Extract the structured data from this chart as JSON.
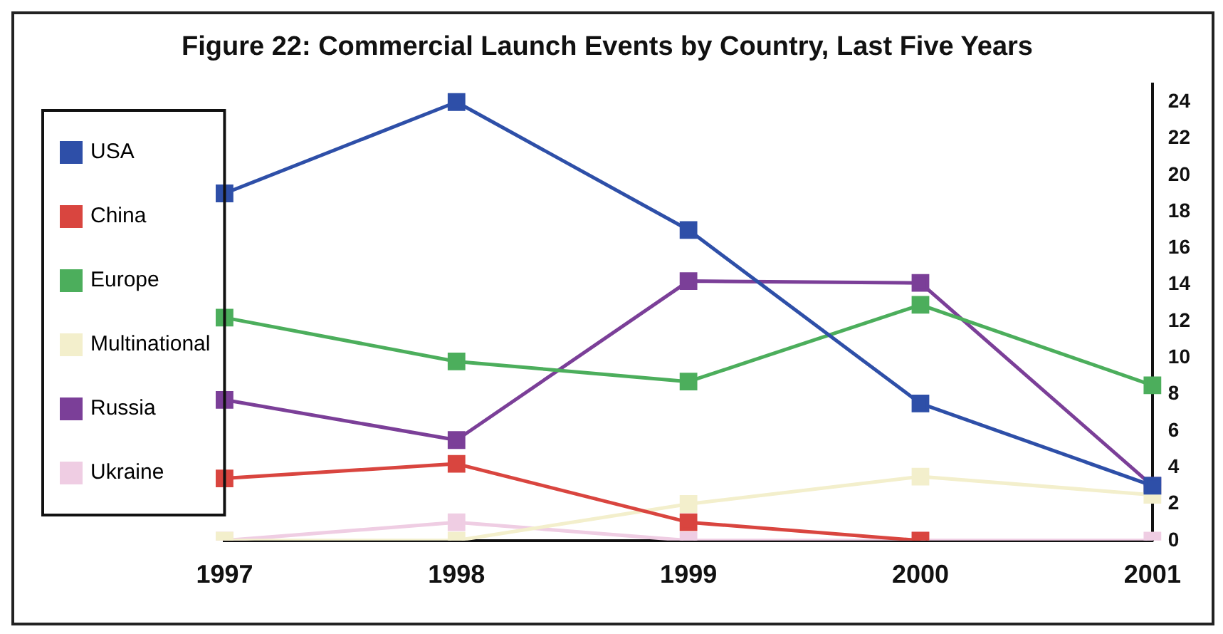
{
  "chart_data": {
    "type": "line",
    "title": "Figure 22: Commercial Launch Events by Country, Last Five Years",
    "categories": [
      "1997",
      "1998",
      "1999",
      "2000",
      "2001"
    ],
    "series": [
      {
        "name": "USA",
        "color": "#2e4fa8",
        "values": [
          19,
          24,
          17,
          7.5,
          3
        ]
      },
      {
        "name": "China",
        "color": "#d9453f",
        "values": [
          3.4,
          4.2,
          1,
          0,
          null
        ]
      },
      {
        "name": "Europe",
        "color": "#4cae5c",
        "values": [
          12.2,
          9.8,
          8.7,
          12.9,
          8.5
        ]
      },
      {
        "name": "Multinational",
        "color": "#f3efcc",
        "values": [
          0,
          0,
          2,
          3.5,
          2.5
        ]
      },
      {
        "name": "Russia",
        "color": "#7b3f98",
        "values": [
          7.7,
          5.5,
          14.2,
          14.1,
          3
        ]
      },
      {
        "name": "Ukraine",
        "color": "#efcde3",
        "values": [
          0,
          1,
          0,
          0,
          0
        ]
      }
    ],
    "ylim": [
      0,
      25
    ],
    "yticks": [
      0,
      2,
      4,
      6,
      8,
      10,
      12,
      14,
      16,
      18,
      20,
      22,
      24
    ],
    "grid": false,
    "legend": "left",
    "marker": "square",
    "line_style": "solid"
  }
}
